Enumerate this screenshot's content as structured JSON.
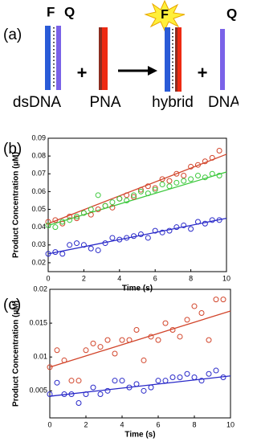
{
  "panel_labels": [
    "(a)",
    "(b)",
    "(c)"
  ],
  "diagram": {
    "fluor": "F",
    "quencher": "Q",
    "plus": "+",
    "items": [
      "dsDNA",
      "PNA",
      "hybrid",
      "DNA"
    ]
  },
  "chart_data": [
    {
      "type": "scatter",
      "xlabel": "Time (s)",
      "ylabel": "Product Concentration (µM)",
      "xlim": [
        0,
        10
      ],
      "xticks": [
        0,
        2,
        4,
        6,
        8,
        10
      ],
      "ylim": [
        0.015,
        0.09
      ],
      "yticks": [
        0.02,
        0.03,
        0.04,
        0.05,
        0.06,
        0.07,
        0.08,
        0.09
      ],
      "series": [
        {
          "color": "#d2452b",
          "x": [
            0,
            0.4,
            0.8,
            1.2,
            1.6,
            2,
            2.4,
            2.8,
            3.2,
            3.6,
            4,
            4.4,
            4.8,
            5.2,
            5.6,
            6,
            6.4,
            6.8,
            7.2,
            7.6,
            8,
            8.4,
            8.8,
            9.2,
            9.6
          ],
          "values": [
            0.043,
            0.044,
            0.042,
            0.046,
            0.045,
            0.048,
            0.047,
            0.05,
            0.052,
            0.051,
            0.056,
            0.058,
            0.057,
            0.061,
            0.063,
            0.062,
            0.067,
            0.066,
            0.07,
            0.069,
            0.074,
            0.075,
            0.077,
            0.079,
            0.083
          ]
        },
        {
          "color": "#3cc83c",
          "x": [
            0,
            0.4,
            0.8,
            1.2,
            1.6,
            2,
            2.4,
            2.8,
            3.2,
            3.6,
            4,
            4.4,
            4.8,
            5.2,
            5.6,
            6,
            6.4,
            6.8,
            7.2,
            7.6,
            8,
            8.4,
            8.8,
            9.2,
            9.6
          ],
          "values": [
            0.041,
            0.04,
            0.043,
            0.044,
            0.046,
            0.048,
            0.05,
            0.058,
            0.052,
            0.054,
            0.056,
            0.055,
            0.058,
            0.06,
            0.059,
            0.061,
            0.064,
            0.063,
            0.065,
            0.066,
            0.067,
            0.069,
            0.068,
            0.07,
            0.069
          ]
        },
        {
          "color": "#2828c8",
          "x": [
            0,
            0.4,
            0.8,
            1.2,
            1.6,
            2,
            2.4,
            2.8,
            3.2,
            3.6,
            4,
            4.4,
            4.8,
            5.2,
            5.6,
            6,
            6.4,
            6.8,
            7.2,
            7.6,
            8,
            8.4,
            8.8,
            9.2,
            9.6
          ],
          "values": [
            0.025,
            0.026,
            0.025,
            0.03,
            0.031,
            0.03,
            0.028,
            0.027,
            0.031,
            0.034,
            0.033,
            0.034,
            0.035,
            0.036,
            0.034,
            0.038,
            0.037,
            0.038,
            0.04,
            0.041,
            0.039,
            0.043,
            0.042,
            0.044,
            0.044
          ]
        }
      ],
      "fits": [
        {
          "color": "#d2452b",
          "x": [
            0,
            10
          ],
          "values": [
            0.042,
            0.081
          ]
        },
        {
          "color": "#3cc83c",
          "x": [
            0,
            10
          ],
          "values": [
            0.041,
            0.071
          ]
        },
        {
          "color": "#2828c8",
          "x": [
            0,
            10
          ],
          "values": [
            0.025,
            0.045
          ]
        }
      ]
    },
    {
      "type": "scatter",
      "xlabel": "Time (s)",
      "ylabel": "Product Concentration (µM)",
      "xlim": [
        0,
        10
      ],
      "xticks": [
        0,
        2,
        4,
        6,
        8,
        10
      ],
      "ylim": [
        0.001,
        0.02
      ],
      "yticks": [
        0.005,
        0.01,
        0.015,
        0.02
      ],
      "series": [
        {
          "color": "#d2452b",
          "x": [
            0,
            0.4,
            0.8,
            1.2,
            1.6,
            2,
            2.4,
            2.8,
            3.2,
            3.6,
            4,
            4.4,
            4.8,
            5.2,
            5.6,
            6,
            6.4,
            6.8,
            7.2,
            7.6,
            8,
            8.4,
            8.8,
            9.2,
            9.6
          ],
          "values": [
            0.0085,
            0.011,
            0.0095,
            0.0065,
            0.0065,
            0.011,
            0.012,
            0.0115,
            0.0125,
            0.0105,
            0.0125,
            0.0125,
            0.014,
            0.0095,
            0.013,
            0.0125,
            0.015,
            0.014,
            0.013,
            0.0155,
            0.0175,
            0.0165,
            0.0125,
            0.0185,
            0.0185
          ]
        },
        {
          "color": "#2828c8",
          "x": [
            0,
            0.4,
            0.8,
            1.2,
            1.6,
            2,
            2.4,
            2.8,
            3.2,
            3.6,
            4,
            4.4,
            4.8,
            5.2,
            5.6,
            6,
            6.4,
            6.8,
            7.2,
            7.6,
            8,
            8.4,
            8.8,
            9.2,
            9.6
          ],
          "values": [
            0.0045,
            0.0062,
            0.0045,
            0.0045,
            0.0032,
            0.0045,
            0.0055,
            0.0045,
            0.005,
            0.0065,
            0.0065,
            0.0055,
            0.006,
            0.005,
            0.0055,
            0.0065,
            0.0065,
            0.007,
            0.007,
            0.0075,
            0.007,
            0.0065,
            0.0075,
            0.008,
            0.007
          ]
        }
      ],
      "fits": [
        {
          "color": "#d2452b",
          "x": [
            0,
            10
          ],
          "values": [
            0.0085,
            0.0168
          ]
        },
        {
          "color": "#2828c8",
          "x": [
            0,
            10
          ],
          "values": [
            0.0042,
            0.0072
          ]
        }
      ]
    }
  ]
}
